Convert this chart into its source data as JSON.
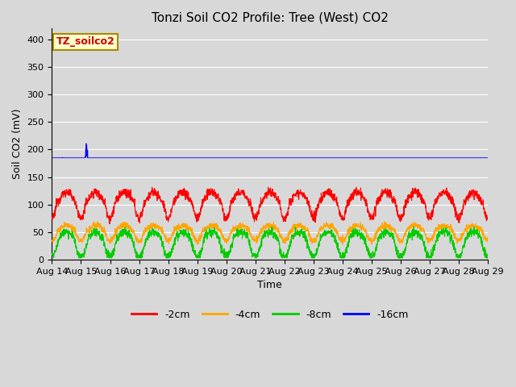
{
  "title": "Tonzi Soil CO2 Profile: Tree (West) CO2",
  "ylabel": "Soil CO2 (mV)",
  "xlabel": "Time",
  "legend_label": "TZ_soilco2",
  "series_labels": [
    "-2cm",
    "-4cm",
    "-8cm",
    "-16cm"
  ],
  "series_colors": [
    "#ff0000",
    "#ffa500",
    "#00cc00",
    "#0000ff"
  ],
  "ylim": [
    0,
    420
  ],
  "yticks": [
    0,
    50,
    100,
    150,
    200,
    250,
    300,
    350,
    400
  ],
  "bg_color": "#d8d8d8",
  "grid_color": "#ffffff",
  "title_fontsize": 11,
  "label_fontsize": 9,
  "tick_fontsize": 8,
  "legend_box_color": "#ffffcc",
  "legend_box_edge": "#cc0000",
  "n_points": 2160,
  "start_day": 14,
  "end_day": 29
}
